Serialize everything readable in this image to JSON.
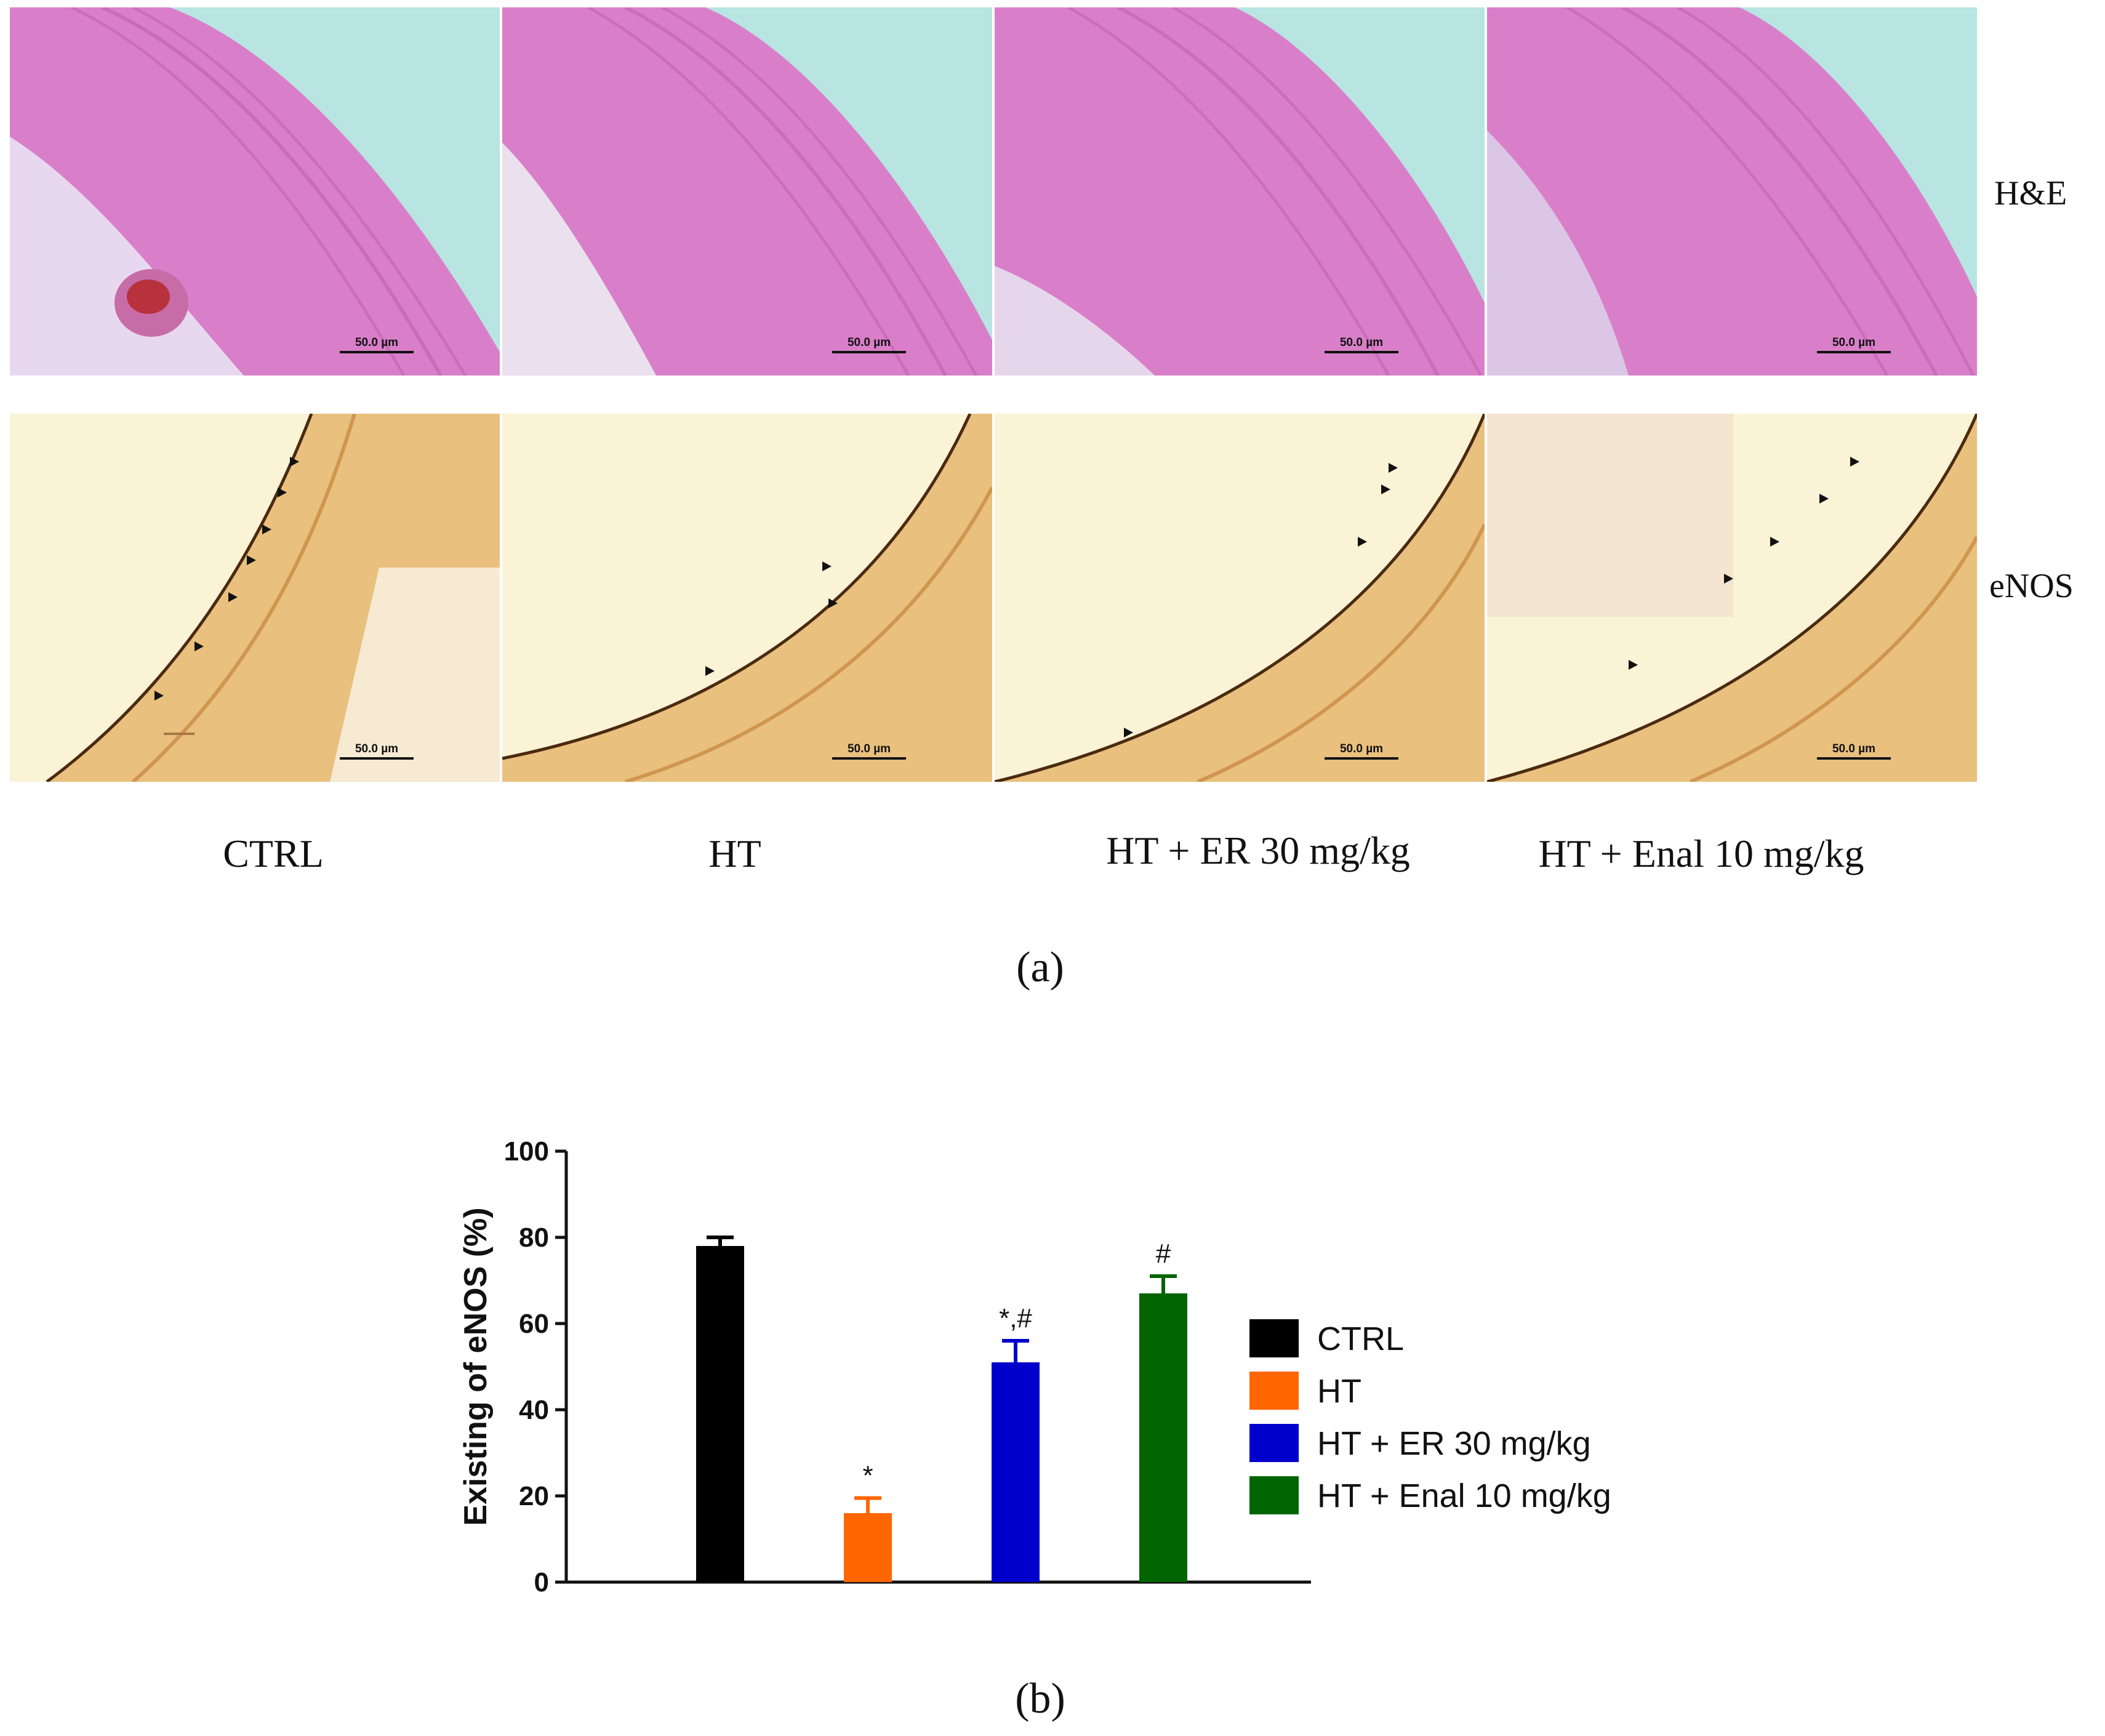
{
  "figure": {
    "panel_a": {
      "label": "(a)",
      "row_labels": [
        "H&E",
        "eNOS"
      ],
      "column_labels": [
        "CTRL",
        "HT",
        "HT + ER 30 mg/kg",
        "HT + Enal 10 mg/kg"
      ],
      "scale_bar": "50.0 µm"
    },
    "panel_b": {
      "label": "(b)"
    }
  },
  "chart_data": {
    "type": "bar",
    "title": "",
    "xlabel": "",
    "ylabel": "Existing of eNOS (%)",
    "ylim": [
      0,
      100
    ],
    "yticks": [
      0,
      20,
      40,
      60,
      80,
      100
    ],
    "categories": [
      "CTRL",
      "HT",
      "HT + ER 30 mg/kg",
      "HT + Enal 10 mg/kg"
    ],
    "values": [
      78,
      16,
      51,
      67
    ],
    "errors": [
      2,
      3.5,
      5,
      4
    ],
    "significance": [
      "",
      "*",
      "*,#",
      "#"
    ],
    "colors": [
      "#000000",
      "#ff6600",
      "#0000cc",
      "#006400"
    ],
    "legend": {
      "placement": "right",
      "entries": [
        "CTRL",
        "HT",
        "HT + ER 30 mg/kg",
        "HT + Enal 10 mg/kg"
      ]
    }
  }
}
